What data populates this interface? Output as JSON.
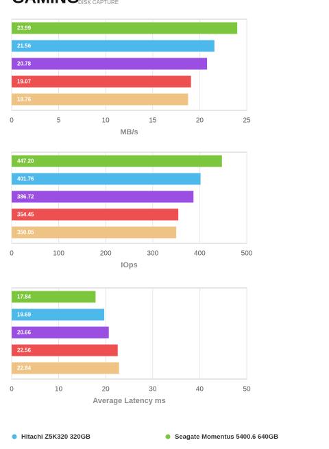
{
  "header": {
    "title": "GAMING",
    "subtitle": "DISK CAPTURE"
  },
  "chart_data": [
    {
      "type": "bar",
      "orientation": "horizontal",
      "values": [
        23.99,
        21.56,
        20.78,
        19.07,
        18.76
      ],
      "value_labels": [
        "23.99",
        "21.56",
        "20.78",
        "19.07",
        "18.76"
      ],
      "colors": [
        "#7cc63d",
        "#4db8ea",
        "#9a4fe2",
        "#ee4f50",
        "#eec384"
      ],
      "xlim": [
        0,
        25
      ],
      "xticks": [
        0,
        5,
        10,
        15,
        20,
        25
      ],
      "xlabel": "MB/s",
      "grid": true
    },
    {
      "type": "bar",
      "orientation": "horizontal",
      "values": [
        447.2,
        401.76,
        386.72,
        354.45,
        350.05
      ],
      "value_labels": [
        "447.20",
        "401.76",
        "386.72",
        "354.45",
        "350.05"
      ],
      "colors": [
        "#7cc63d",
        "#4db8ea",
        "#9a4fe2",
        "#ee4f50",
        "#eec384"
      ],
      "xlim": [
        0,
        500
      ],
      "xticks": [
        0,
        100,
        200,
        300,
        400,
        500
      ],
      "xlabel": "IOps",
      "grid": true
    },
    {
      "type": "bar",
      "orientation": "horizontal",
      "values": [
        17.84,
        19.69,
        20.66,
        22.56,
        22.84
      ],
      "value_labels": [
        "17.84",
        "19.69",
        "20.66",
        "22.56",
        "22.84"
      ],
      "colors": [
        "#7cc63d",
        "#4db8ea",
        "#9a4fe2",
        "#ee4f50",
        "#eec384"
      ],
      "xlim": [
        0,
        50
      ],
      "xticks": [
        0,
        10,
        20,
        30,
        40,
        50
      ],
      "xlabel": "Average Latency ms",
      "grid": true
    }
  ],
  "legend": [
    {
      "name": "Hitachi Z5K320 320GB",
      "color": "#4db8ea"
    },
    {
      "name": "Seagate Momentus 5400.6 640GB",
      "color": "#7cc63d"
    }
  ]
}
